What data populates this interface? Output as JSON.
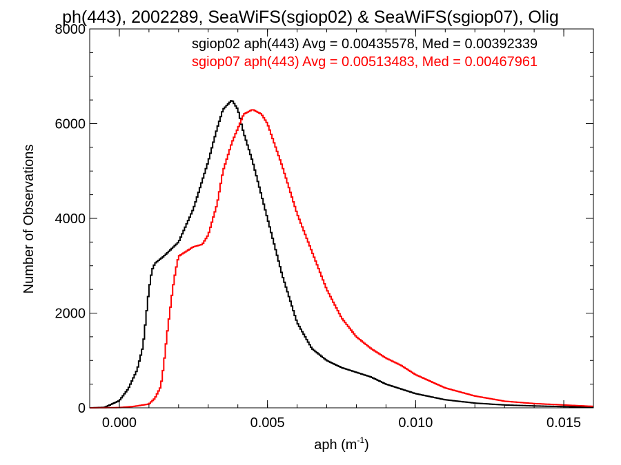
{
  "chart_data": {
    "type": "line",
    "title": "ph(443), 2002289, SeaWiFS(sgiop02) & SeaWiFS(sgiop07), Olig",
    "xlabel": "aph (m",
    "xlabel_sup": "-1",
    "xlabel_close": ")",
    "ylabel": "Number of Observations",
    "xlim": [
      -0.001,
      0.016
    ],
    "ylim": [
      0,
      8000
    ],
    "x_ticks": [
      {
        "value": 0.0,
        "label": "0.000"
      },
      {
        "value": 0.005,
        "label": "0.005"
      },
      {
        "value": 0.01,
        "label": "0.010"
      },
      {
        "value": 0.015,
        "label": "0.015"
      }
    ],
    "y_ticks": [
      {
        "value": 0,
        "label": "0"
      },
      {
        "value": 2000,
        "label": "2000"
      },
      {
        "value": 4000,
        "label": "4000"
      },
      {
        "value": 6000,
        "label": "6000"
      },
      {
        "value": 8000,
        "label": "8000"
      }
    ],
    "grid": false,
    "legend_placement": "top-right",
    "series": [
      {
        "name": "sgiop02 aph(443) Avg = 0.00435578, Med = 0.00392339",
        "color": "#000000",
        "x": [
          -0.001,
          -0.0005,
          0.0,
          0.0003,
          0.0006,
          0.0008,
          0.0009,
          0.001,
          0.0011,
          0.0012,
          0.0015,
          0.002,
          0.0025,
          0.003,
          0.0033,
          0.0035,
          0.0038,
          0.004,
          0.0042,
          0.0045,
          0.005,
          0.0055,
          0.006,
          0.0065,
          0.007,
          0.0075,
          0.008,
          0.0085,
          0.009,
          0.0095,
          0.01,
          0.011,
          0.012,
          0.013,
          0.014,
          0.015,
          0.016
        ],
        "y": [
          0,
          10,
          150,
          400,
          800,
          1300,
          1900,
          2500,
          2900,
          3050,
          3200,
          3500,
          4200,
          5200,
          5900,
          6300,
          6500,
          6300,
          5800,
          5200,
          4000,
          2800,
          1800,
          1250,
          1000,
          850,
          750,
          650,
          500,
          400,
          300,
          170,
          100,
          60,
          40,
          25,
          15
        ]
      },
      {
        "name": "sgiop07 aph(443) Avg = 0.00513483, Med = 0.00467961",
        "color": "#ff0000",
        "x": [
          -0.001,
          0.0,
          0.0005,
          0.001,
          0.0012,
          0.0014,
          0.0015,
          0.0016,
          0.0017,
          0.0018,
          0.0019,
          0.002,
          0.0025,
          0.0028,
          0.003,
          0.0033,
          0.0035,
          0.0038,
          0.004,
          0.0042,
          0.0045,
          0.0048,
          0.005,
          0.0055,
          0.006,
          0.0065,
          0.007,
          0.0075,
          0.008,
          0.0085,
          0.009,
          0.0095,
          0.01,
          0.011,
          0.012,
          0.013,
          0.014,
          0.015,
          0.016
        ],
        "y": [
          0,
          5,
          30,
          80,
          200,
          450,
          900,
          1500,
          2000,
          2500,
          2900,
          3200,
          3400,
          3450,
          3650,
          4300,
          5000,
          5600,
          5900,
          6200,
          6300,
          6200,
          6000,
          5100,
          4100,
          3300,
          2500,
          1900,
          1500,
          1250,
          1050,
          900,
          700,
          420,
          250,
          140,
          90,
          60,
          30
        ]
      }
    ]
  }
}
